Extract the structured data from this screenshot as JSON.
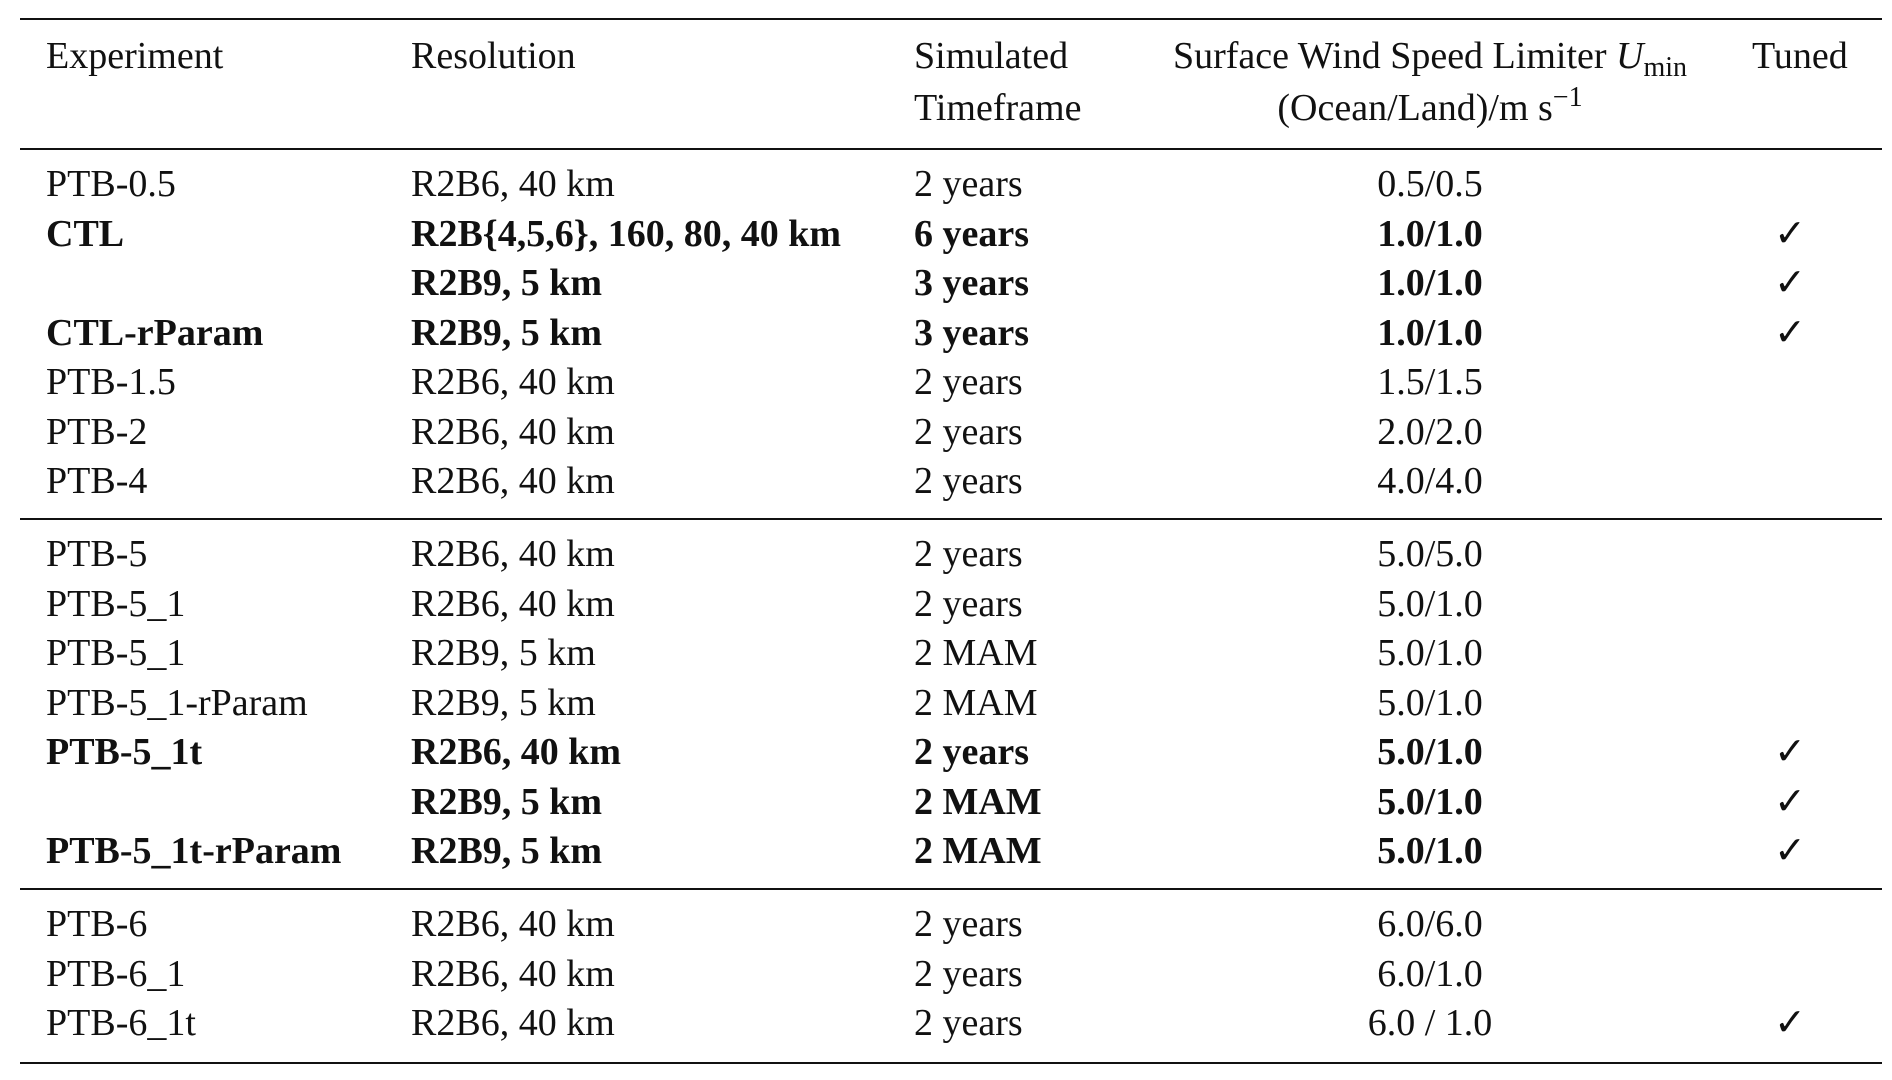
{
  "headers": {
    "experiment": "Experiment",
    "resolution": "Resolution",
    "timeframe_line1": "Simulated",
    "timeframe_line2": "Timeframe",
    "limiter_line1_text": "Surface Wind Speed Limiter ",
    "limiter_symbol": "U",
    "limiter_subscript": "min",
    "limiter_line2_text": "(Ocean/Land)/m s",
    "limiter_superscript": "−1",
    "tuned": "Tuned"
  },
  "rows": [
    {
      "experiment": "PTB-0.5",
      "resolution": "R2B6, 40 km",
      "timeframe": "2 years",
      "limiter": "0.5/0.5",
      "tuned": "",
      "bold": false
    },
    {
      "experiment": "CTL",
      "resolution": "R2B{4,5,6}, 160, 80, 40 km",
      "timeframe": "6 years",
      "limiter": "1.0/1.0",
      "tuned": "✓",
      "bold": true
    },
    {
      "experiment": "",
      "resolution": "R2B9, 5 km",
      "timeframe": "3 years",
      "limiter": "1.0/1.0",
      "tuned": "✓",
      "bold": true
    },
    {
      "experiment": "CTL-rParam",
      "resolution": "R2B9, 5 km",
      "timeframe": "3 years",
      "limiter": "1.0/1.0",
      "tuned": "✓",
      "bold": true
    },
    {
      "experiment": "PTB-1.5",
      "resolution": "R2B6, 40 km",
      "timeframe": "2 years",
      "limiter": "1.5/1.5",
      "tuned": "",
      "bold": false
    },
    {
      "experiment": "PTB-2",
      "resolution": "R2B6, 40 km",
      "timeframe": "2 years",
      "limiter": "2.0/2.0",
      "tuned": "",
      "bold": false
    },
    {
      "experiment": "PTB-4",
      "resolution": "R2B6, 40 km",
      "timeframe": "2 years",
      "limiter": "4.0/4.0",
      "tuned": "",
      "bold": false
    },
    {
      "experiment": "PTB-5",
      "resolution": "R2B6, 40 km",
      "timeframe": "2 years",
      "limiter": "5.0/5.0",
      "tuned": "",
      "bold": false
    },
    {
      "experiment": "PTB-5_1",
      "resolution": "R2B6, 40 km",
      "timeframe": "2 years",
      "limiter": "5.0/1.0",
      "tuned": "",
      "bold": false
    },
    {
      "experiment": "PTB-5_1",
      "resolution": "R2B9, 5 km",
      "timeframe": "2 MAM",
      "limiter": "5.0/1.0",
      "tuned": "",
      "bold": false
    },
    {
      "experiment": "PTB-5_1-rParam",
      "resolution": "R2B9, 5 km",
      "timeframe": "2 MAM",
      "limiter": "5.0/1.0",
      "tuned": "",
      "bold": false
    },
    {
      "experiment": "PTB-5_1t",
      "resolution": "R2B6, 40 km",
      "timeframe": "2 years",
      "limiter": "5.0/1.0",
      "tuned": "✓",
      "bold": true
    },
    {
      "experiment": "",
      "resolution": "R2B9, 5 km",
      "timeframe": "2 MAM",
      "limiter": "5.0/1.0",
      "tuned": "✓",
      "bold": true
    },
    {
      "experiment": "PTB-5_1t-rParam",
      "resolution": "R2B9, 5 km",
      "timeframe": "2 MAM",
      "limiter": "5.0/1.0",
      "tuned": "✓",
      "bold": true
    },
    {
      "experiment": "PTB-6",
      "resolution": "R2B6, 40 km",
      "timeframe": "2 years",
      "limiter": "6.0/6.0",
      "tuned": "",
      "bold": false
    },
    {
      "experiment": "PTB-6_1",
      "resolution": "R2B6, 40 km",
      "timeframe": "2 years",
      "limiter": "6.0/1.0",
      "tuned": "",
      "bold": false
    },
    {
      "experiment": "PTB-6_1t",
      "resolution": "R2B6, 40 km",
      "timeframe": "2 years",
      "limiter": "6.0 / 1.0",
      "tuned": "✓",
      "bold": false
    }
  ]
}
